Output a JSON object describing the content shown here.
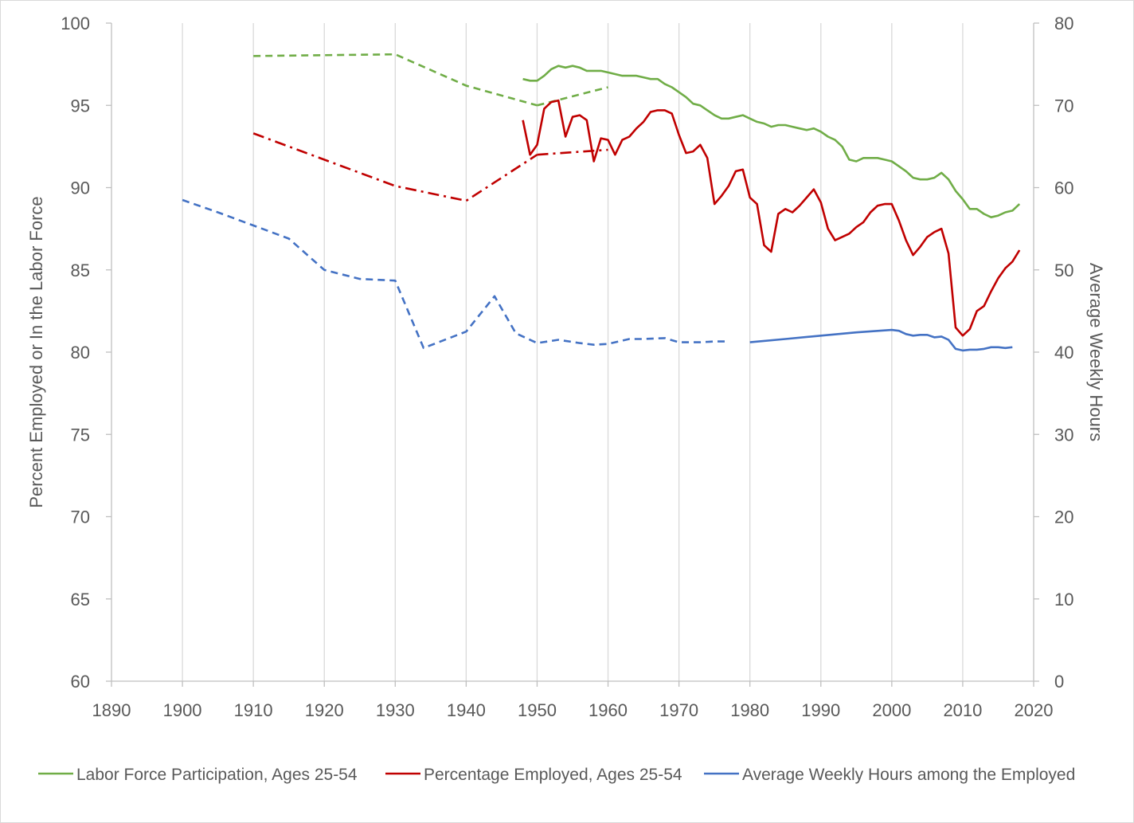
{
  "chart_data": {
    "type": "line",
    "title": "",
    "ylabel": "Percent Employed or In the Labor Force",
    "y2label": "Average Weekly Hours",
    "xlim": [
      1890,
      2020
    ],
    "ylim": [
      60,
      100
    ],
    "y2lim": [
      0,
      80
    ],
    "x_ticks": [
      1890,
      1900,
      1910,
      1920,
      1930,
      1940,
      1950,
      1960,
      1970,
      1980,
      1990,
      2000,
      2010,
      2020
    ],
    "y_ticks": [
      60,
      65,
      70,
      75,
      80,
      85,
      90,
      95,
      100
    ],
    "y2_ticks": [
      0,
      10,
      20,
      30,
      40,
      50,
      60,
      70,
      80
    ],
    "grid": "vertical",
    "legend_position": "bottom",
    "legend": [
      {
        "name": "Labor Force Participation, Ages 25-54",
        "color": "#70ad47"
      },
      {
        "name": "Percentage Employed, Ages 25-54",
        "color": "#c00000"
      },
      {
        "name": "Average Weekly Hours among the Employed",
        "color": "#4472c4"
      }
    ],
    "series": [
      {
        "legend_index": 0,
        "axis": "left",
        "color": "#70ad47",
        "dash": "dashed",
        "x": [
          1910,
          1930,
          1940,
          1950
        ],
        "y": [
          98.0,
          98.1,
          96.2,
          95.0
        ]
      },
      {
        "legend_index": 0,
        "axis": "left",
        "color": "#70ad47",
        "dash": "dashed",
        "x": [
          1950,
          1960
        ],
        "y": [
          95.0,
          96.1
        ]
      },
      {
        "legend_index": 0,
        "axis": "left",
        "color": "#70ad47",
        "dash": "solid",
        "x": [
          1948,
          1949,
          1950,
          1951,
          1952,
          1953,
          1954,
          1955,
          1956,
          1957,
          1958,
          1959,
          1960,
          1961,
          1962,
          1963,
          1964,
          1965,
          1966,
          1967,
          1968,
          1969,
          1970,
          1971,
          1972,
          1973,
          1974,
          1975,
          1976,
          1977,
          1978,
          1979,
          1980,
          1981,
          1982,
          1983,
          1984,
          1985,
          1986,
          1987,
          1988,
          1989,
          1990,
          1991,
          1992,
          1993,
          1994,
          1995,
          1996,
          1997,
          1998,
          1999,
          2000,
          2001,
          2002,
          2003,
          2004,
          2005,
          2006,
          2007,
          2008,
          2009,
          2010,
          2011,
          2012,
          2013,
          2014,
          2015,
          2016,
          2017,
          2018
        ],
        "y": [
          96.6,
          96.5,
          96.5,
          96.8,
          97.2,
          97.4,
          97.3,
          97.4,
          97.3,
          97.1,
          97.1,
          97.1,
          97.0,
          96.9,
          96.8,
          96.8,
          96.8,
          96.7,
          96.6,
          96.6,
          96.3,
          96.1,
          95.8,
          95.5,
          95.1,
          95.0,
          94.7,
          94.4,
          94.2,
          94.2,
          94.3,
          94.4,
          94.2,
          94.0,
          93.9,
          93.7,
          93.8,
          93.8,
          93.7,
          93.6,
          93.5,
          93.6,
          93.4,
          93.1,
          92.9,
          92.5,
          91.7,
          91.6,
          91.8,
          91.8,
          91.8,
          91.7,
          91.6,
          91.3,
          91.0,
          90.6,
          90.5,
          90.5,
          90.6,
          90.9,
          90.5,
          89.8,
          89.3,
          88.7,
          88.7,
          88.4,
          88.2,
          88.3,
          88.5,
          88.6,
          89.0
        ]
      },
      {
        "legend_index": 1,
        "axis": "left",
        "color": "#c00000",
        "dash": "dashdot",
        "x": [
          1910,
          1920,
          1930,
          1940,
          1950
        ],
        "y": [
          93.3,
          91.7,
          90.1,
          89.2,
          92.0
        ]
      },
      {
        "legend_index": 1,
        "axis": "left",
        "color": "#c00000",
        "dash": "dashdot",
        "x": [
          1950,
          1960
        ],
        "y": [
          92.0,
          92.3
        ]
      },
      {
        "legend_index": 1,
        "axis": "left",
        "color": "#c00000",
        "dash": "solid",
        "x": [
          1948,
          1949,
          1950,
          1951,
          1952,
          1953,
          1954,
          1955,
          1956,
          1957,
          1958,
          1959,
          1960,
          1961,
          1962,
          1963,
          1964,
          1965,
          1966,
          1967,
          1968,
          1969,
          1970,
          1971,
          1972,
          1973,
          1974,
          1975,
          1976,
          1977,
          1978,
          1979,
          1980,
          1981,
          1982,
          1983,
          1984,
          1985,
          1986,
          1987,
          1988,
          1989,
          1990,
          1991,
          1992,
          1993,
          1994,
          1995,
          1996,
          1997,
          1998,
          1999,
          2000,
          2001,
          2002,
          2003,
          2004,
          2005,
          2006,
          2007,
          2008,
          2009,
          2010,
          2011,
          2012,
          2013,
          2014,
          2015,
          2016,
          2017,
          2018
        ],
        "y": [
          94.1,
          92.0,
          92.6,
          94.8,
          95.2,
          95.3,
          93.1,
          94.3,
          94.4,
          94.1,
          91.6,
          93.0,
          92.9,
          92.0,
          92.9,
          93.1,
          93.6,
          94.0,
          94.6,
          94.7,
          94.7,
          94.5,
          93.2,
          92.1,
          92.2,
          92.6,
          91.8,
          89.0,
          89.5,
          90.1,
          91.0,
          91.1,
          89.4,
          89.0,
          86.5,
          86.1,
          88.4,
          88.7,
          88.5,
          88.9,
          89.4,
          89.9,
          89.1,
          87.5,
          86.8,
          87.0,
          87.2,
          87.6,
          87.9,
          88.5,
          88.9,
          89.0,
          89.0,
          88.0,
          86.8,
          85.9,
          86.4,
          87.0,
          87.3,
          87.5,
          86.0,
          81.5,
          81.0,
          81.4,
          82.5,
          82.8,
          83.7,
          84.5,
          85.1,
          85.5,
          86.2
        ]
      },
      {
        "legend_index": 2,
        "axis": "right",
        "color": "#4472c4",
        "dash": "dashed",
        "x": [
          1900,
          1905,
          1910,
          1915,
          1920,
          1925,
          1930,
          1934,
          1940,
          1944,
          1947,
          1950,
          1953,
          1956,
          1958,
          1960,
          1963,
          1965,
          1968,
          1970,
          1973,
          1975,
          1977
        ],
        "y": [
          58.5,
          57.0,
          55.4,
          53.8,
          50.0,
          48.9,
          48.7,
          40.5,
          42.5,
          46.8,
          42.3,
          41.1,
          41.5,
          41.1,
          40.9,
          41.0,
          41.6,
          41.6,
          41.7,
          41.2,
          41.2,
          41.3,
          41.3
        ]
      },
      {
        "legend_index": 2,
        "axis": "right",
        "color": "#4472c4",
        "dash": "solid",
        "x": [
          1980,
          1985,
          1990,
          1995,
          2000,
          2001,
          2002,
          2003,
          2004,
          2005,
          2006,
          2007,
          2008,
          2009,
          2010,
          2011,
          2012,
          2013,
          2014,
          2015,
          2016,
          2017
        ],
        "y": [
          41.2,
          41.6,
          42.0,
          42.4,
          42.7,
          42.6,
          42.2,
          42.0,
          42.1,
          42.1,
          41.8,
          41.9,
          41.5,
          40.4,
          40.2,
          40.3,
          40.3,
          40.4,
          40.6,
          40.6,
          40.5,
          40.6
        ]
      }
    ]
  }
}
